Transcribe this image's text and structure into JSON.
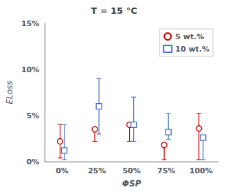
{
  "chart_data": {
    "type": "errorbar",
    "title": "T = 15 °C",
    "xlabel": "ΦSP",
    "ylabel": "ELoss",
    "categories": [
      "0%",
      "25%",
      "50%",
      "75%",
      "100%"
    ],
    "series": [
      {
        "name": "5 wt.%",
        "color": "#cc0000",
        "marker": "circle",
        "values": [
          0.022,
          0.035,
          0.04,
          0.018,
          0.036
        ],
        "err_lo": [
          0.018,
          0.013,
          0.018,
          0.016,
          0.034
        ],
        "err_hi": [
          0.018,
          0.0,
          0.0,
          0.0,
          0.016
        ]
      },
      {
        "name": "10 wt.%",
        "color": "#4472c4",
        "marker": "square",
        "values": [
          0.012,
          0.06,
          0.04,
          0.032,
          0.026
        ],
        "err_lo": [
          0.01,
          0.03,
          0.018,
          0.008,
          0.024
        ],
        "err_hi": [
          0.028,
          0.03,
          0.03,
          0.02,
          0.0
        ]
      }
    ],
    "ylim": [
      0,
      0.15
    ],
    "yticks": [
      {
        "value": 0,
        "label": "0%"
      },
      {
        "value": 0.05,
        "label": "5%"
      },
      {
        "value": 0.1,
        "label": "10%"
      },
      {
        "value": 0.15,
        "label": "15%"
      }
    ],
    "legend": "upper right",
    "grid": false
  }
}
